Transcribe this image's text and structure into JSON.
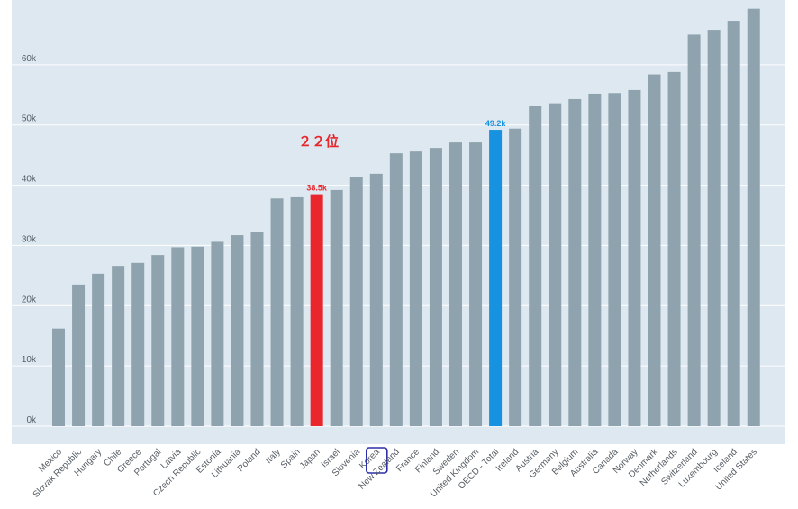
{
  "chart_data": {
    "type": "bar",
    "title": "",
    "xlabel": "",
    "ylabel": "",
    "ylim": [
      0,
      70000
    ],
    "yticks": [
      0,
      10000,
      20000,
      30000,
      40000,
      50000,
      60000
    ],
    "ytick_labels": [
      "0k",
      "10k",
      "20k",
      "30k",
      "40k",
      "50k",
      "60k"
    ],
    "grid": true,
    "categories": [
      "Mexico",
      "Slovak Republic",
      "Hungary",
      "Chile",
      "Greece",
      "Portugal",
      "Latvia",
      "Czech Republic",
      "Estonia",
      "Lithuania",
      "Poland",
      "Italy",
      "Spain",
      "Japan",
      "Israel",
      "Slovenia",
      "Korea",
      "New Zealand",
      "France",
      "Finland",
      "Sweden",
      "United Kingdom",
      "OECD - Total",
      "Ireland",
      "Austria",
      "Germany",
      "Belgium",
      "Australia",
      "Canada",
      "Norway",
      "Denmark",
      "Netherlands",
      "Switzerland",
      "Luxembourg",
      "Iceland",
      "United States"
    ],
    "values": [
      16200,
      23500,
      25300,
      26600,
      27100,
      28400,
      29700,
      29800,
      30600,
      31700,
      32300,
      37800,
      38000,
      38500,
      39200,
      41400,
      41900,
      45300,
      45600,
      46200,
      47100,
      47100,
      49200,
      49400,
      53100,
      53600,
      54300,
      55200,
      55300,
      55800,
      58400,
      58800,
      65000,
      65800,
      67300,
      69300
    ],
    "colors": {
      "default": "#8fa3ae",
      "highlight_japan": "#e8262b",
      "highlight_oecd": "#1692e0",
      "plot_background": "#dde8f1",
      "gridline": "#ffffff",
      "korea_box": "#2d2fa8"
    },
    "highlights": [
      {
        "category": "Japan",
        "color": "#e8262b",
        "label": "38.5k"
      },
      {
        "category": "OECD - Total",
        "color": "#1692e0",
        "label": "49.2k"
      }
    ],
    "boxed_category": "Korea",
    "annotations": [
      {
        "text": "２２位",
        "near": "Japan",
        "color": "#e8262b"
      }
    ]
  }
}
